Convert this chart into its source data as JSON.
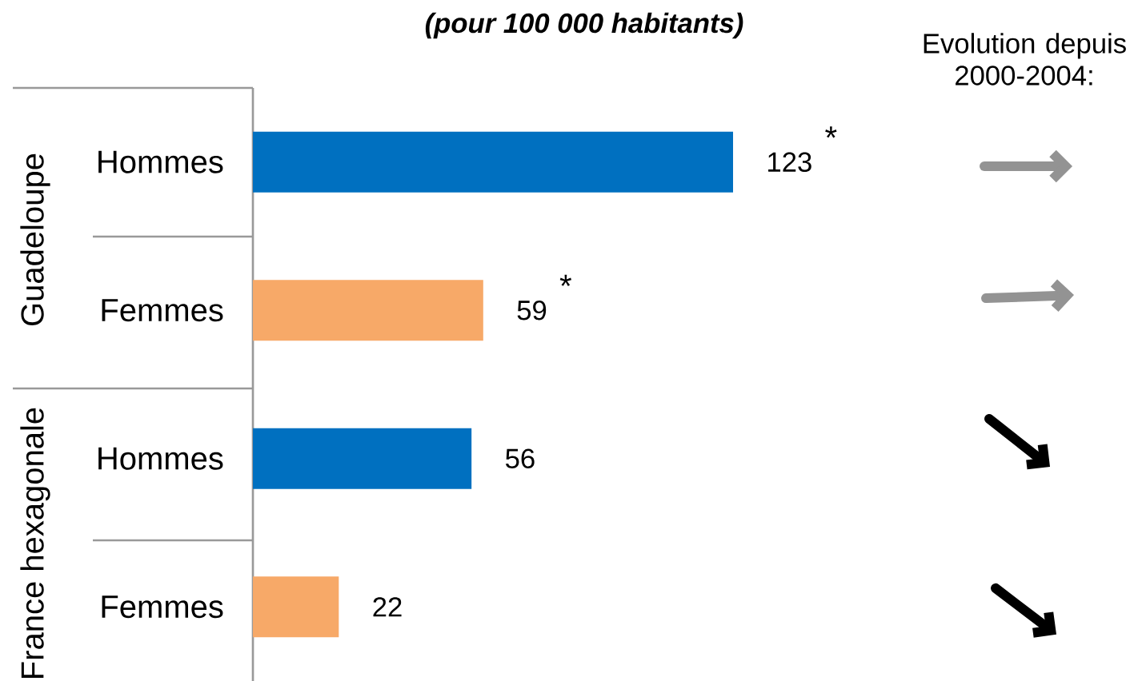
{
  "chart_data": {
    "type": "bar",
    "orientation": "horizontal",
    "subtitle": "**(pour 100 000 habitants)**",
    "categories": [
      "Hommes",
      "Femmes",
      "Hommes",
      "Femmes"
    ],
    "values": [
      123,
      59,
      56,
      22
    ],
    "colors": [
      "#0070c0",
      "#f7a968",
      "#0070c0",
      "#f7a968"
    ],
    "data_labels": true,
    "annotations": [
      "Evolution depuis 2000-2004:",
      "Guadeloupe",
      "France hexagonale",
      "*",
      "*"
    ]
  }
}
